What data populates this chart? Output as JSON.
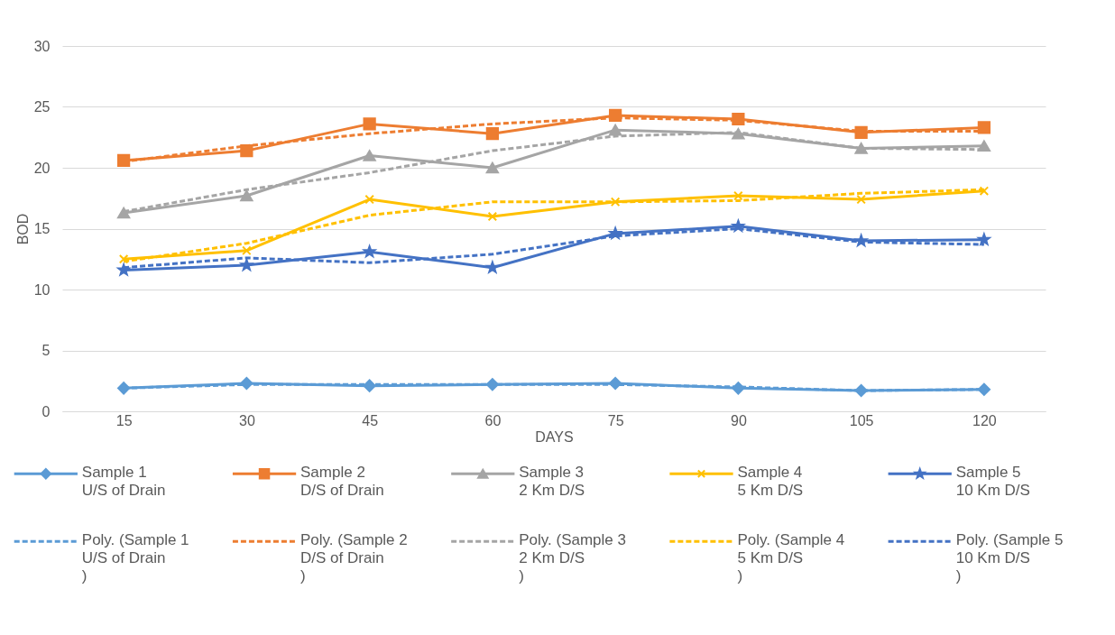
{
  "chart_data": {
    "type": "line",
    "xlabel": "DAYS",
    "ylabel": "BOD",
    "categories": [
      "15",
      "30",
      "45",
      "60",
      "75",
      "90",
      "105",
      "120"
    ],
    "ylim": [
      0,
      30
    ],
    "yticks": [
      0,
      5,
      10,
      15,
      20,
      25,
      30
    ],
    "grid": "y",
    "legend": "bottom",
    "series": [
      {
        "name": "Sample 1\nU/S of Drain",
        "color": "#5b9bd5",
        "marker": "diamond",
        "line_style": "solid",
        "values": [
          1.9,
          2.3,
          2.1,
          2.2,
          2.3,
          1.9,
          1.7,
          1.8
        ]
      },
      {
        "name": "Sample 2\nD/S of Drain",
        "color": "#ed7d31",
        "marker": "square",
        "line_style": "solid",
        "values": [
          20.6,
          21.4,
          23.6,
          22.8,
          24.3,
          24.0,
          22.9,
          23.3
        ]
      },
      {
        "name": "Sample 3\n2 Km D/S",
        "color": "#a5a5a5",
        "marker": "triangle",
        "line_style": "solid",
        "values": [
          16.3,
          17.7,
          21.0,
          20.0,
          23.1,
          22.8,
          21.6,
          21.8
        ]
      },
      {
        "name": "Sample 4\n5 Km D/S",
        "color": "#ffc000",
        "marker": "cross",
        "line_style": "solid",
        "values": [
          12.5,
          13.2,
          17.4,
          16.0,
          17.2,
          17.7,
          17.4,
          18.1
        ]
      },
      {
        "name": "Sample 5\n10 Km D/S",
        "color": "#4472c4",
        "marker": "star",
        "line_style": "solid",
        "values": [
          11.6,
          12.0,
          13.1,
          11.8,
          14.6,
          15.2,
          14.0,
          14.1
        ]
      },
      {
        "name": "Poly. (Sample 1\nU/S of Drain\n)",
        "color": "#5b9bd5",
        "marker": "none",
        "line_style": "dashed",
        "values": [
          1.9,
          2.2,
          2.2,
          2.2,
          2.2,
          2.0,
          1.7,
          1.8
        ]
      },
      {
        "name": "Poly. (Sample 2\nD/S of Drain\n)",
        "color": "#ed7d31",
        "marker": "none",
        "line_style": "dashed",
        "values": [
          20.5,
          21.8,
          22.8,
          23.6,
          24.1,
          23.9,
          23.0,
          23.0
        ]
      },
      {
        "name": "Poly. (Sample 3\n2 Km D/S\n)",
        "color": "#a5a5a5",
        "marker": "none",
        "line_style": "dashed",
        "values": [
          16.4,
          18.2,
          19.6,
          21.4,
          22.6,
          22.9,
          21.6,
          21.5
        ]
      },
      {
        "name": "Poly. (Sample 4\n5 Km D/S\n)",
        "color": "#ffc000",
        "marker": "none",
        "line_style": "dashed",
        "values": [
          12.3,
          13.8,
          16.1,
          17.2,
          17.2,
          17.3,
          17.9,
          18.2
        ]
      },
      {
        "name": "Poly. (Sample 5\n10 Km D/S\n)",
        "color": "#4472c4",
        "marker": "none",
        "line_style": "dashed",
        "values": [
          11.8,
          12.6,
          12.2,
          12.9,
          14.4,
          15.0,
          13.9,
          13.7
        ]
      }
    ]
  }
}
